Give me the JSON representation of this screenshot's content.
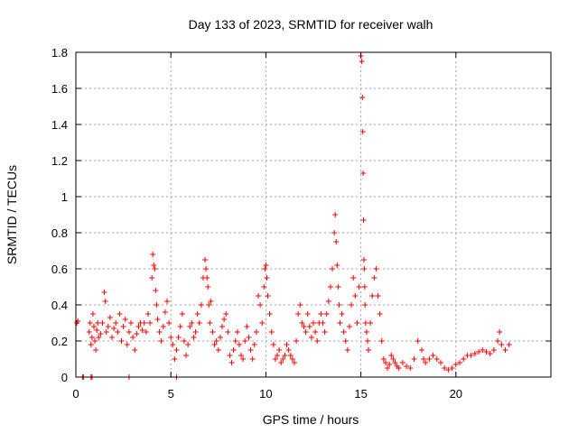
{
  "chart_data": {
    "type": "scatter",
    "title": "Day 133 of 2023, SRMTID for receiver walh",
    "xlabel": "GPS time / hours",
    "ylabel": "SRMTID / TECUs",
    "xlim": [
      0,
      25
    ],
    "ylim": [
      0,
      1.8
    ],
    "xticks": [
      0,
      5,
      10,
      15,
      20
    ],
    "xtick_labels": [
      "0",
      "5",
      "10",
      "15",
      "20"
    ],
    "yticks": [
      0,
      0.2,
      0.4,
      0.6,
      0.8,
      1,
      1.2,
      1.4,
      1.6,
      1.8
    ],
    "ytick_labels": [
      "0",
      "0.2",
      "0.4",
      "0.6",
      "0.8",
      "1",
      "1.2",
      "1.4",
      "1.6",
      "1.8"
    ],
    "grid": true,
    "marker": "plus",
    "color": "#ff0000",
    "series": [
      {
        "name": "SRMTID",
        "x": [
          0.05,
          0.1,
          0.35,
          0.4,
          0.7,
          0.75,
          0.8,
          0.85,
          0.9,
          0.95,
          1.0,
          1.05,
          1.1,
          1.15,
          1.2,
          1.3,
          1.4,
          1.5,
          1.55,
          1.6,
          1.7,
          1.8,
          1.9,
          2.0,
          2.1,
          2.2,
          2.3,
          2.4,
          2.5,
          2.6,
          2.7,
          2.8,
          2.9,
          3.0,
          3.1,
          3.2,
          3.3,
          3.4,
          3.5,
          3.6,
          3.7,
          3.8,
          3.9,
          4.0,
          4.05,
          4.1,
          4.15,
          4.2,
          4.25,
          4.3,
          4.4,
          4.5,
          4.6,
          4.7,
          4.8,
          4.9,
          5.0,
          5.1,
          5.2,
          5.3,
          5.4,
          5.5,
          5.6,
          5.7,
          5.8,
          5.9,
          6.0,
          6.1,
          6.2,
          6.3,
          6.4,
          6.5,
          6.6,
          6.7,
          6.8,
          6.85,
          6.9,
          6.95,
          7.0,
          7.05,
          7.1,
          7.2,
          7.3,
          7.4,
          7.5,
          7.6,
          7.7,
          7.8,
          7.9,
          8.0,
          8.1,
          8.2,
          8.3,
          8.4,
          8.5,
          8.6,
          8.7,
          8.8,
          8.9,
          9.0,
          9.1,
          9.2,
          9.3,
          9.4,
          9.5,
          9.6,
          9.7,
          9.8,
          9.9,
          9.95,
          10.0,
          10.05,
          10.1,
          10.2,
          10.3,
          10.4,
          10.5,
          10.6,
          10.7,
          10.8,
          10.9,
          11.0,
          11.1,
          11.2,
          11.3,
          11.4,
          11.5,
          11.6,
          11.7,
          11.8,
          11.9,
          12.0,
          12.1,
          12.2,
          12.3,
          12.4,
          12.5,
          12.6,
          12.7,
          12.8,
          12.9,
          13.0,
          13.1,
          13.2,
          13.3,
          13.4,
          13.5,
          13.6,
          13.65,
          13.7,
          13.75,
          13.8,
          13.85,
          13.9,
          14.0,
          14.1,
          14.2,
          14.3,
          14.4,
          14.5,
          14.6,
          14.7,
          14.8,
          14.9,
          15.0,
          15.05,
          15.08,
          15.1,
          15.12,
          15.14,
          15.16,
          15.18,
          15.2,
          15.22,
          15.25,
          15.3,
          15.35,
          15.4,
          15.5,
          15.6,
          15.7,
          15.8,
          15.9,
          16.0,
          16.1,
          16.2,
          16.3,
          16.4,
          16.5,
          16.6,
          16.7,
          16.8,
          16.9,
          17.0,
          17.2,
          17.4,
          17.6,
          17.8,
          18.0,
          18.2,
          18.3,
          18.4,
          18.6,
          18.8,
          19.0,
          19.2,
          19.4,
          19.6,
          19.8,
          20.0,
          20.2,
          20.4,
          20.6,
          20.8,
          21.0,
          21.2,
          21.4,
          21.6,
          21.8,
          22.0,
          22.2,
          22.3,
          22.4,
          22.6,
          22.8,
          0.8,
          0.85,
          2.8,
          5.3
        ],
        "y": [
          0.3,
          0.31,
          0.0,
          0.0,
          0.25,
          0.3,
          0.18,
          0.22,
          0.35,
          0.28,
          0.2,
          0.15,
          0.26,
          0.3,
          0.22,
          0.24,
          0.3,
          0.47,
          0.42,
          0.25,
          0.28,
          0.33,
          0.22,
          0.27,
          0.3,
          0.25,
          0.35,
          0.2,
          0.28,
          0.32,
          0.18,
          0.25,
          0.3,
          0.22,
          0.15,
          0.24,
          0.28,
          0.3,
          0.26,
          0.3,
          0.25,
          0.35,
          0.3,
          0.55,
          0.68,
          0.62,
          0.6,
          0.48,
          0.4,
          0.32,
          0.25,
          0.2,
          0.28,
          0.36,
          0.42,
          0.3,
          0.22,
          0.18,
          0.1,
          0.15,
          0.22,
          0.28,
          0.35,
          0.2,
          0.12,
          0.18,
          0.28,
          0.3,
          0.22,
          0.25,
          0.35,
          0.3,
          0.4,
          0.55,
          0.65,
          0.6,
          0.55,
          0.5,
          0.4,
          0.3,
          0.42,
          0.25,
          0.18,
          0.2,
          0.15,
          0.22,
          0.28,
          0.32,
          0.35,
          0.25,
          0.12,
          0.08,
          0.15,
          0.2,
          0.25,
          0.18,
          0.12,
          0.1,
          0.2,
          0.28,
          0.22,
          0.15,
          0.1,
          0.18,
          0.25,
          0.45,
          0.4,
          0.3,
          0.5,
          0.6,
          0.62,
          0.55,
          0.45,
          0.35,
          0.25,
          0.18,
          0.1,
          0.12,
          0.15,
          0.08,
          0.1,
          0.12,
          0.18,
          0.15,
          0.12,
          0.1,
          0.08,
          0.2,
          0.35,
          0.4,
          0.3,
          0.28,
          0.25,
          0.35,
          0.28,
          0.22,
          0.3,
          0.25,
          0.2,
          0.3,
          0.35,
          0.3,
          0.25,
          0.35,
          0.42,
          0.5,
          0.6,
          0.8,
          0.9,
          0.75,
          0.62,
          0.5,
          0.4,
          0.3,
          0.35,
          0.25,
          0.2,
          0.15,
          0.28,
          0.4,
          0.55,
          0.45,
          0.3,
          0.5,
          1.78,
          1.75,
          1.55,
          1.36,
          1.13,
          0.87,
          0.65,
          0.6,
          0.5,
          0.4,
          0.3,
          0.25,
          0.2,
          0.15,
          0.3,
          0.45,
          0.55,
          0.6,
          0.45,
          0.35,
          0.2,
          0.1,
          0.08,
          0.05,
          0.07,
          0.12,
          0.1,
          0.08,
          0.06,
          0.05,
          0.08,
          0.06,
          0.05,
          0.1,
          0.2,
          0.15,
          0.1,
          0.08,
          0.1,
          0.12,
          0.1,
          0.08,
          0.05,
          0.04,
          0.05,
          0.07,
          0.08,
          0.1,
          0.12,
          0.12,
          0.13,
          0.14,
          0.15,
          0.14,
          0.13,
          0.15,
          0.2,
          0.25,
          0.18,
          0.15,
          0.18,
          0.0,
          0.0,
          0.0,
          0.0
        ]
      }
    ]
  }
}
